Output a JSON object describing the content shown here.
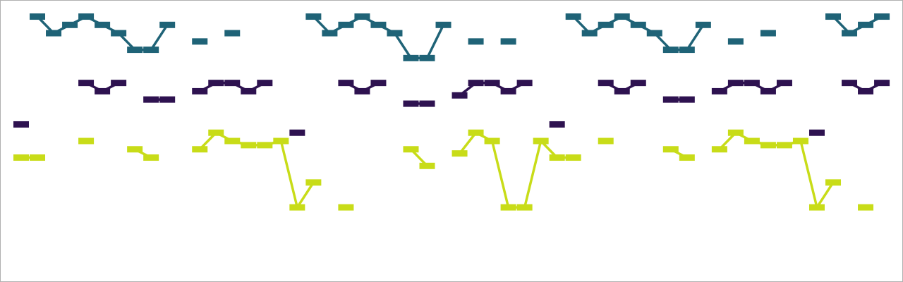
{
  "chart_data": {
    "type": "line",
    "x": [
      0,
      1,
      2,
      3,
      4,
      5,
      6,
      7,
      8,
      9,
      10,
      11,
      12,
      13,
      14,
      15,
      16,
      17,
      18,
      19,
      20,
      21,
      22,
      23,
      24,
      25,
      26,
      27,
      28,
      29,
      30,
      31,
      32,
      33,
      34,
      35,
      36,
      37,
      38,
      39,
      40,
      41,
      42,
      43,
      44,
      45,
      46,
      47,
      48,
      49,
      50,
      51,
      52,
      53
    ],
    "xlim": [
      0,
      54.3
    ],
    "ylim": [
      -1.0,
      16.0
    ],
    "grid": false,
    "legend": "none",
    "series": [
      {
        "color": "#1f6377",
        "values": [
          null,
          15,
          14,
          14.5,
          15,
          14.5,
          14,
          13,
          13,
          14.5,
          null,
          13.5,
          null,
          14,
          null,
          null,
          null,
          null,
          15,
          14,
          14.5,
          15,
          14.5,
          14,
          12.5,
          12.5,
          14.5,
          null,
          13.5,
          null,
          13.5,
          null,
          null,
          null,
          15,
          14,
          14.5,
          15,
          14.5,
          14,
          13,
          13,
          14.5,
          null,
          13.5,
          null,
          14,
          null,
          null,
          null,
          15,
          14,
          14.5,
          15
        ]
      },
      {
        "color": "#2e1250",
        "values": [
          8.5,
          null,
          null,
          null,
          11,
          10.5,
          11,
          null,
          10,
          10,
          null,
          10.5,
          11,
          11,
          10.5,
          11,
          null,
          8,
          null,
          null,
          11,
          10.5,
          11,
          null,
          9.75,
          9.75,
          null,
          10.25,
          11,
          11,
          10.5,
          11,
          null,
          8.5,
          null,
          null,
          11,
          10.5,
          11,
          null,
          10,
          10,
          null,
          10.5,
          11,
          11,
          10.5,
          11,
          null,
          8,
          null,
          11,
          10.5,
          11
        ]
      },
      {
        "color": "#c8dc18",
        "values": [
          6.5,
          6.5,
          null,
          null,
          7.5,
          null,
          null,
          7,
          6.5,
          null,
          null,
          7,
          8,
          7.5,
          7.25,
          7.25,
          7.5,
          3.5,
          5,
          null,
          3.5,
          null,
          null,
          null,
          7,
          6,
          null,
          6.75,
          8,
          7.5,
          3.5,
          3.5,
          7.5,
          6.5,
          6.5,
          null,
          7.5,
          null,
          null,
          null,
          7,
          6.5,
          null,
          7,
          8,
          7.5,
          7.25,
          7.25,
          7.5,
          3.5,
          5,
          null,
          3.5,
          null
        ]
      }
    ]
  }
}
